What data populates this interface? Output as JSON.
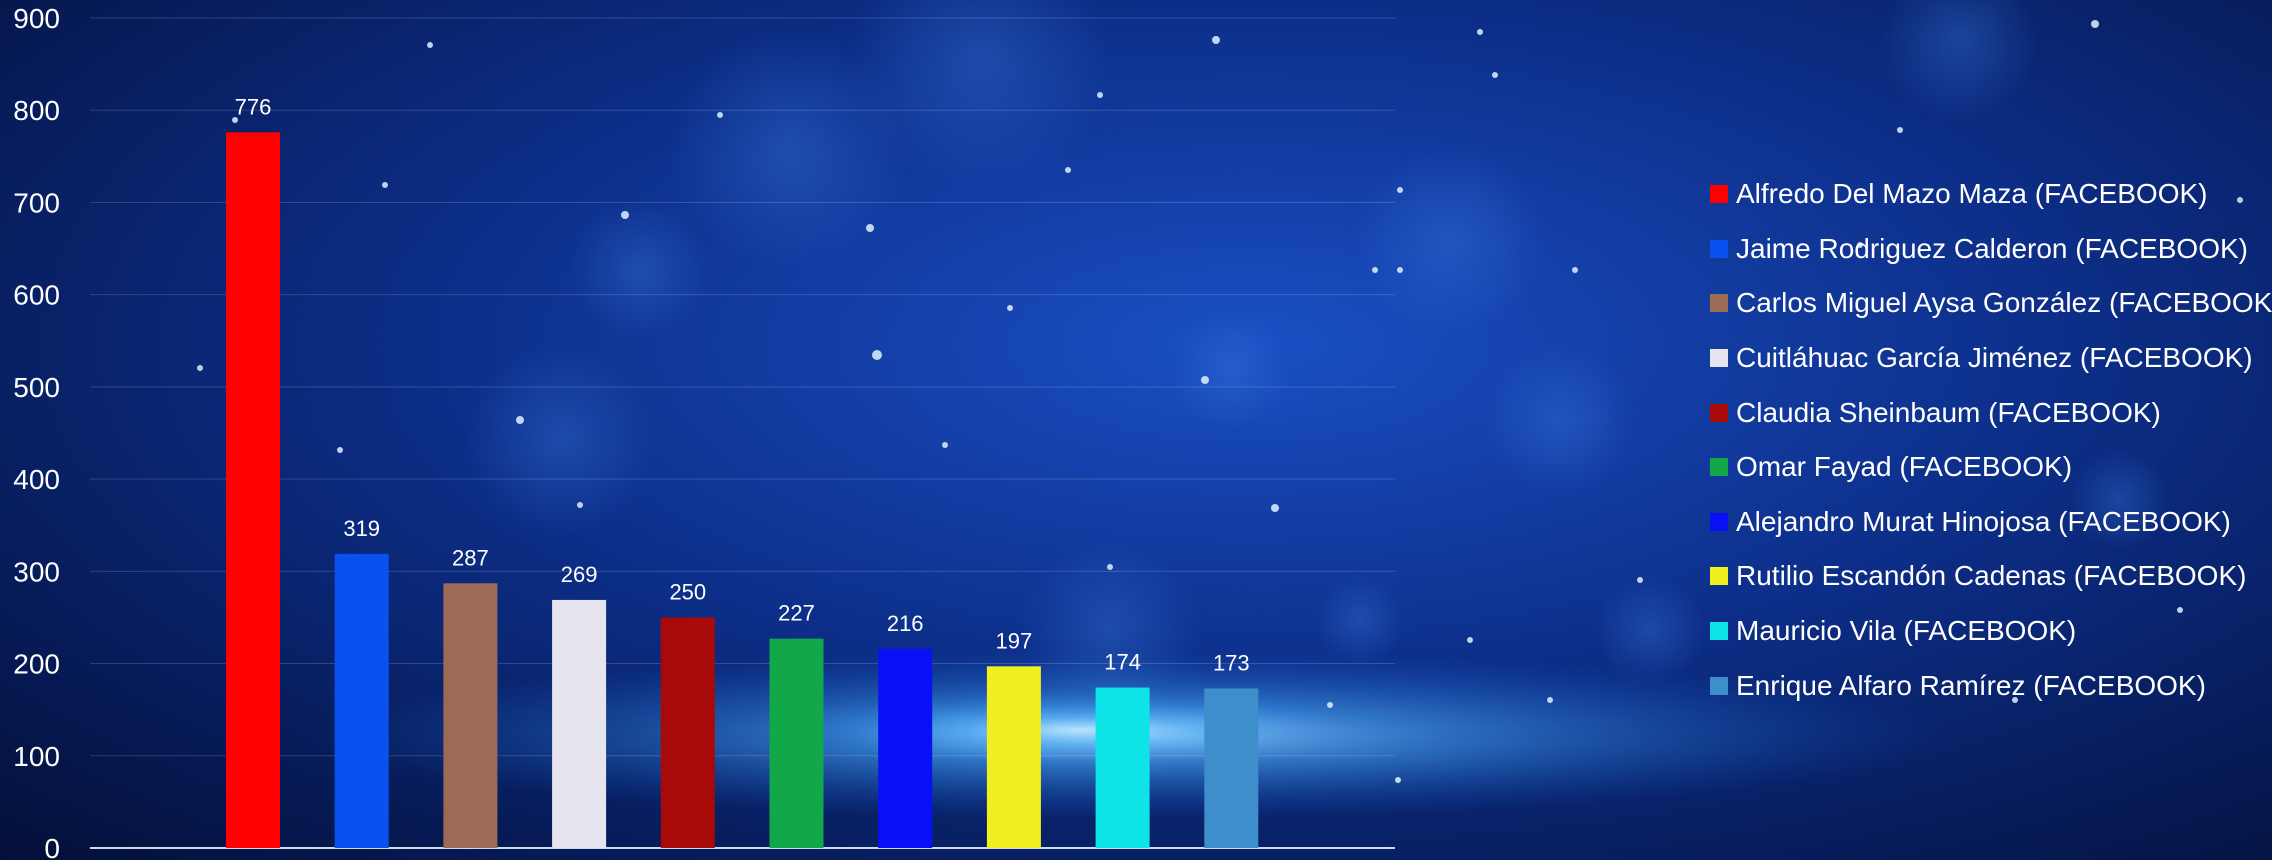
{
  "chart_data": {
    "type": "bar",
    "categories": [
      "Alfredo Del Mazo Maza (FACEBOOK)",
      "Jaime Rodriguez Calderon (FACEBOOK)",
      "Carlos Miguel Aysa González (FACEBOOK)",
      "Cuitláhuac García Jiménez (FACEBOOK)",
      "Claudia Sheinbaum (FACEBOOK)",
      "Omar Fayad (FACEBOOK)",
      "Alejandro Murat Hinojosa (FACEBOOK)",
      "Rutilio Escandón Cadenas (FACEBOOK)",
      "Mauricio Vila (FACEBOOK)",
      "Enrique Alfaro Ramírez (FACEBOOK)"
    ],
    "values": [
      776,
      319,
      287,
      269,
      250,
      227,
      216,
      197,
      174,
      173
    ],
    "colors": [
      "#ff0000",
      "#0a52f0",
      "#9c6b56",
      "#e6e4ee",
      "#a80a0a",
      "#12a84a",
      "#0a10f5",
      "#f0f020",
      "#0ee4e8",
      "#3d8ecb"
    ],
    "yticks": [
      0,
      100,
      200,
      300,
      400,
      500,
      600,
      700,
      800,
      900
    ],
    "ylim": [
      0,
      900
    ],
    "grid": true,
    "legend_position": "right",
    "data_labels": true
  }
}
